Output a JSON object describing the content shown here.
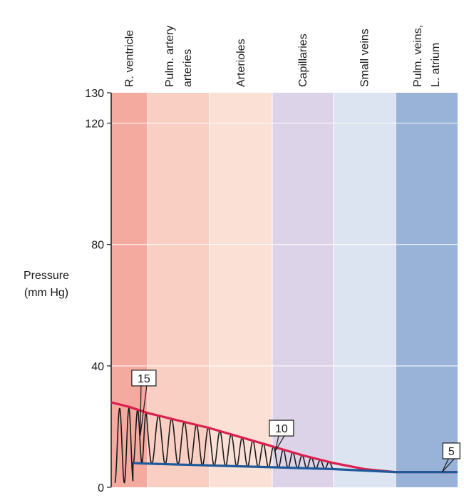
{
  "chart_data": {
    "type": "line",
    "title": "",
    "ylabel_lines": [
      "Pressure",
      "(mm Hg)"
    ],
    "xlabel": "",
    "ylim": [
      0,
      130
    ],
    "yticks": [
      0,
      40,
      80,
      120,
      130
    ],
    "grid": true,
    "segments": [
      {
        "label_lines": [
          "R. ventricle"
        ],
        "color": "#f4aa9f"
      },
      {
        "label_lines": [
          "Pulm. artery",
          "arteries"
        ],
        "color": "#f9cfc3"
      },
      {
        "label_lines": [
          "Arterioles"
        ],
        "color": "#fbe0d6"
      },
      {
        "label_lines": [
          "Capillaries"
        ],
        "color": "#dcd3e8"
      },
      {
        "label_lines": [
          "Small veins"
        ],
        "color": "#dde4f1"
      },
      {
        "label_lines": [
          "Pulm. veins,",
          "L. atrium"
        ],
        "color": "#98b2d8"
      }
    ],
    "series": [
      {
        "color": "#d9204e",
        "x": [
          0,
          0.5,
          1.0,
          1.5,
          2.0,
          2.5,
          3.0,
          3.5,
          4.0,
          4.5,
          5.0,
          5.5,
          6.0
        ],
        "values": [
          28,
          26.5,
          24.5,
          22,
          19.5,
          16.5,
          13.5,
          10.5,
          8,
          6,
          5,
          5,
          5
        ]
      },
      {
        "color": "#1e5a9a",
        "x": [
          0.6,
          1.0,
          2.0,
          3.0,
          4.0,
          4.5,
          5.0,
          5.5,
          6.0
        ],
        "values": [
          8,
          7.8,
          7.2,
          6.6,
          6.0,
          5.5,
          5,
          5,
          5
        ]
      }
    ],
    "pulse_wave": {
      "color": "#1a1a1a",
      "x_start": 0.1,
      "x_end": 4.0,
      "cycles": 21
    },
    "annotations": [
      {
        "text": "15",
        "x": 0.9,
        "y": 36,
        "tip_x": 0.8,
        "tip_y": 17
      },
      {
        "text": "10",
        "x": 3.15,
        "y": 19.5,
        "tip_x": 3.05,
        "tip_y": 12
      },
      {
        "text": "5",
        "x": 5.9,
        "y": 12,
        "tip_x": 5.75,
        "tip_y": 5
      }
    ]
  }
}
